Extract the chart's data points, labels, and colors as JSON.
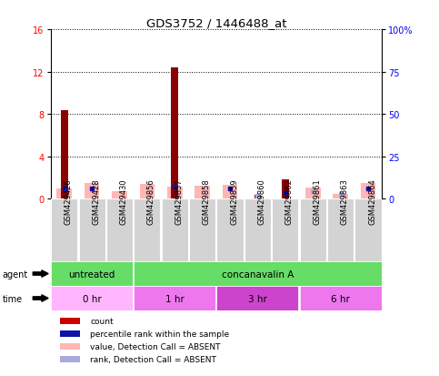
{
  "title": "GDS3752 / 1446488_at",
  "samples": [
    "GSM429426",
    "GSM429428",
    "GSM429430",
    "GSM429856",
    "GSM429857",
    "GSM429858",
    "GSM429859",
    "GSM429860",
    "GSM429862",
    "GSM429861",
    "GSM429863",
    "GSM429864"
  ],
  "count_values": [
    8.4,
    0,
    0,
    0,
    12.4,
    0,
    0,
    0.35,
    1.8,
    0,
    0,
    0
  ],
  "rank_dot_values": [
    6.1,
    6.0,
    0,
    0,
    7.1,
    0,
    6.3,
    0,
    3.3,
    0,
    0,
    6.2
  ],
  "absent_bar_values": [
    6.1,
    9.2,
    4.7,
    8.6,
    7.1,
    7.8,
    8.4,
    0.35,
    0,
    6.8,
    2.8,
    9.5
  ],
  "absent_rank_dots": [
    0,
    0,
    0,
    0,
    0,
    0,
    0,
    1.6,
    0,
    4.7,
    2.8,
    0
  ],
  "ylim_left": [
    0,
    16
  ],
  "ylim_right": [
    0,
    100
  ],
  "yticks_left": [
    0,
    4,
    8,
    12,
    16
  ],
  "yticks_right": [
    0,
    25,
    50,
    75,
    100
  ],
  "yticklabels_right": [
    "0",
    "25",
    "50",
    "75",
    "100%"
  ],
  "color_count": "#8B0000",
  "color_rank_dot": "#1010AA",
  "color_absent_bar": "#FFB6B6",
  "color_absent_rank": "#AAAADD",
  "legend_items": [
    {
      "label": "count",
      "color": "#CC0000"
    },
    {
      "label": "percentile rank within the sample",
      "color": "#1010AA"
    },
    {
      "label": "value, Detection Call = ABSENT",
      "color": "#FFB6B6"
    },
    {
      "label": "rank, Detection Call = ABSENT",
      "color": "#AAAADD"
    }
  ],
  "agent_untreated_color": "#66DD66",
  "agent_concan_color": "#66DD66",
  "time_0hr_color": "#FFB6FF",
  "time_1hr_color": "#EE77EE",
  "time_3hr_color": "#CC44CC",
  "time_6hr_color": "#EE77EE",
  "sample_bg_color": "#D3D3D3",
  "bar_width": 0.55,
  "count_bar_width": 0.25
}
